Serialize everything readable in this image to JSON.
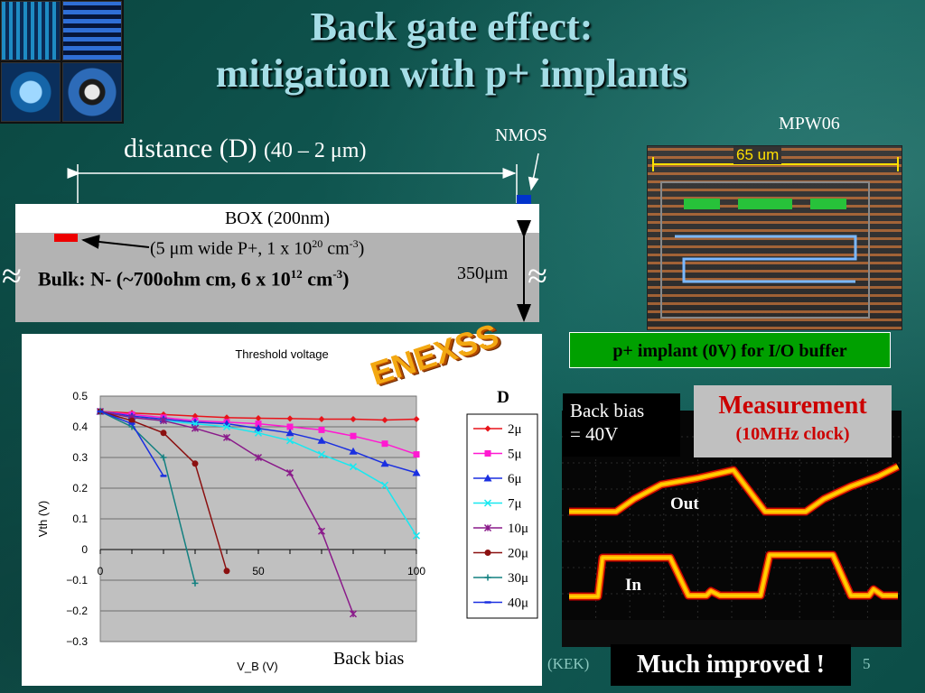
{
  "title": {
    "line1": "Back gate effect:",
    "line2": "mitigation with p+ implants"
  },
  "cross_section": {
    "distance_label": "distance (D)",
    "distance_range": "(40 – 2 μm)",
    "nmos": "NMOS",
    "box": "BOX (200nm)",
    "implant_note_a": "(5 μm wide P+, 1 x 10",
    "implant_note_exp1": "20",
    "implant_note_b": " cm",
    "implant_note_exp2": "-3",
    "implant_note_c": ")",
    "bulk_a": "Bulk: N- (~700ohm cm, 6 x 10",
    "bulk_exp1": "12",
    "bulk_b": " cm",
    "bulk_exp2": "-3",
    "bulk_c": ")",
    "thickness": "350μm",
    "break_symbol": "≈"
  },
  "mpw_label": "MPW06",
  "layout": {
    "scale_text": "65 um",
    "implant_label": "p+ implant (0V) for I/O buffer"
  },
  "logo_text": "ENEXSS",
  "measurement": {
    "title": "Measurement",
    "subtitle": "(10MHz clock)",
    "back_bias_line1": "Back bias",
    "back_bias_line2": "= 40V",
    "out_label": "Out",
    "in_label": "In",
    "result": "Much improved !"
  },
  "footer": {
    "kek": "(KEK)",
    "page": "5"
  },
  "colors": {
    "background": "#0e4f48",
    "title": "#a5dde6",
    "implant_box": "#00a000",
    "measurement_text": "#cc0000"
  },
  "chart_data": {
    "type": "line",
    "title": "Threshold voltage",
    "xlabel": "V_B (V)",
    "ylabel": "Vth (V)",
    "x_annotation": "Back bias",
    "legend_title": "D",
    "xlim": [
      0,
      100
    ],
    "ylim": [
      -0.3,
      0.5
    ],
    "yticks": [
      "0.5",
      "0.4",
      "0.3",
      "0.2",
      "0.1",
      "0",
      "−0.1",
      "−0.2",
      "−0.3"
    ],
    "xticks": [
      "0",
      "50",
      "100"
    ],
    "series": [
      {
        "name": "2μ",
        "color": "#e8141a",
        "marker": "diamond",
        "x": [
          0,
          10,
          20,
          30,
          40,
          50,
          60,
          70,
          80,
          90,
          100
        ],
        "y": [
          0.45,
          0.445,
          0.44,
          0.435,
          0.43,
          0.428,
          0.427,
          0.425,
          0.425,
          0.422,
          0.425
        ]
      },
      {
        "name": "5μ",
        "color": "#ff19d1",
        "marker": "square",
        "x": [
          0,
          10,
          20,
          30,
          40,
          50,
          60,
          70,
          80,
          90,
          100
        ],
        "y": [
          0.45,
          0.44,
          0.43,
          0.42,
          0.415,
          0.41,
          0.4,
          0.39,
          0.37,
          0.345,
          0.31
        ]
      },
      {
        "name": "6μ",
        "color": "#1a2fe0",
        "marker": "triangle",
        "x": [
          0,
          10,
          20,
          30,
          40,
          50,
          60,
          70,
          80,
          90,
          100
        ],
        "y": [
          0.45,
          0.435,
          0.425,
          0.415,
          0.41,
          0.395,
          0.38,
          0.355,
          0.32,
          0.28,
          0.25
        ]
      },
      {
        "name": "7μ",
        "color": "#18e8f0",
        "marker": "x",
        "x": [
          0,
          10,
          20,
          30,
          40,
          50,
          60,
          70,
          80,
          90,
          100
        ],
        "y": [
          0.45,
          0.43,
          0.42,
          0.41,
          0.4,
          0.38,
          0.355,
          0.31,
          0.27,
          0.21,
          0.045
        ]
      },
      {
        "name": "10μ",
        "color": "#8a1a8a",
        "marker": "star",
        "x": [
          0,
          10,
          20,
          30,
          40,
          50,
          60,
          70,
          80
        ],
        "y": [
          0.45,
          0.43,
          0.42,
          0.395,
          0.365,
          0.3,
          0.25,
          0.06,
          -0.21
        ]
      },
      {
        "name": "20μ",
        "color": "#8b1010",
        "marker": "circle",
        "x": [
          0,
          10,
          20,
          30,
          40
        ],
        "y": [
          0.45,
          0.42,
          0.38,
          0.28,
          -0.07
        ]
      },
      {
        "name": "30μ",
        "color": "#128080",
        "marker": "plus",
        "x": [
          0,
          10,
          20,
          30
        ],
        "y": [
          0.45,
          0.4,
          0.3,
          -0.11
        ]
      },
      {
        "name": "40μ",
        "color": "#1a2fe0",
        "marker": "dash",
        "x": [
          0,
          10,
          20
        ],
        "y": [
          0.45,
          0.41,
          0.24
        ]
      }
    ]
  }
}
